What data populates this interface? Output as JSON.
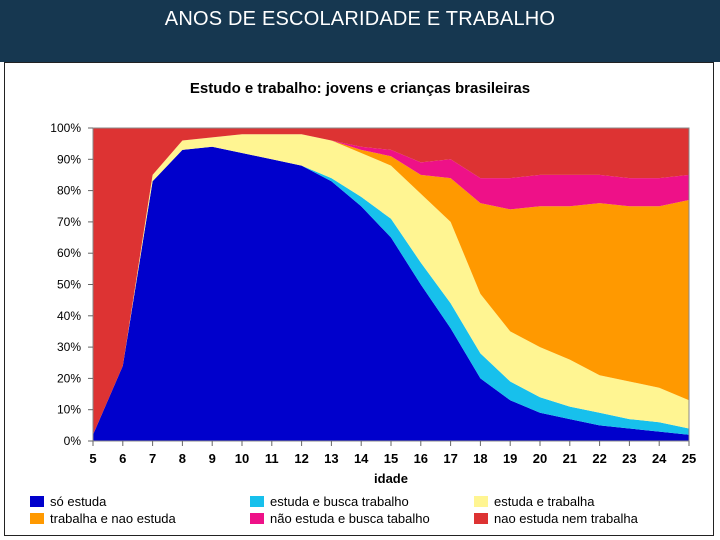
{
  "slide": {
    "title": "ANOS DE ESCOLARIDADE E TRABALHO"
  },
  "chart_data": {
    "type": "area",
    "stacked": true,
    "title": "Estudo e trabalho: jovens e crianças brasileiras",
    "xlabel": "idade",
    "ylabel": "",
    "x": [
      5,
      6,
      7,
      8,
      9,
      10,
      11,
      12,
      13,
      14,
      15,
      16,
      17,
      18,
      19,
      20,
      21,
      22,
      23,
      24,
      25
    ],
    "x_ticks": [
      "5",
      "6",
      "7",
      "8",
      "9",
      "10",
      "11",
      "12",
      "13",
      "14",
      "15",
      "16",
      "17",
      "18",
      "19",
      "20",
      "21",
      "22",
      "23",
      "24",
      "25"
    ],
    "ylim": [
      0,
      100
    ],
    "y_ticks": [
      "0%",
      "10%",
      "20%",
      "30%",
      "40%",
      "50%",
      "60%",
      "70%",
      "80%",
      "90%",
      "100%"
    ],
    "grid": false,
    "legend_position": "bottom",
    "series": [
      {
        "name": "só estuda",
        "color": "#0000cc",
        "values": [
          2,
          24,
          83,
          93,
          94,
          92,
          90,
          88,
          83,
          75,
          65,
          50,
          36,
          20,
          13,
          9,
          7,
          5,
          4,
          3,
          2
        ]
      },
      {
        "name": "estuda e busca trabalho",
        "color": "#17c0ec",
        "values": [
          0,
          0,
          0,
          0,
          0,
          0,
          0,
          0,
          1,
          3,
          6,
          7,
          8,
          8,
          6,
          5,
          4,
          4,
          3,
          3,
          2
        ]
      },
      {
        "name": "estuda e trabalha",
        "color": "#fff592",
        "values": [
          0,
          0,
          2,
          3,
          3,
          6,
          8,
          10,
          12,
          14,
          17,
          22,
          26,
          19,
          16,
          16,
          15,
          12,
          12,
          11,
          9
        ]
      },
      {
        "name": "trabalha e nao estuda",
        "color": "#ff9900",
        "values": [
          0,
          0,
          0,
          0,
          0,
          0,
          0,
          0,
          0,
          1,
          3,
          6,
          14,
          29,
          39,
          45,
          49,
          55,
          56,
          58,
          64
        ]
      },
      {
        "name": "não estuda e busca tabalho",
        "color": "#ee1188",
        "values": [
          0,
          0,
          0,
          0,
          0,
          0,
          0,
          0,
          0,
          1,
          2,
          4,
          6,
          8,
          10,
          10,
          10,
          9,
          9,
          9,
          8
        ]
      },
      {
        "name": "nao estuda nem trabalha",
        "color": "#dd3333",
        "values": [
          98,
          76,
          15,
          4,
          3,
          2,
          2,
          2,
          4,
          6,
          7,
          11,
          10,
          16,
          16,
          15,
          15,
          15,
          16,
          16,
          15
        ]
      }
    ]
  }
}
